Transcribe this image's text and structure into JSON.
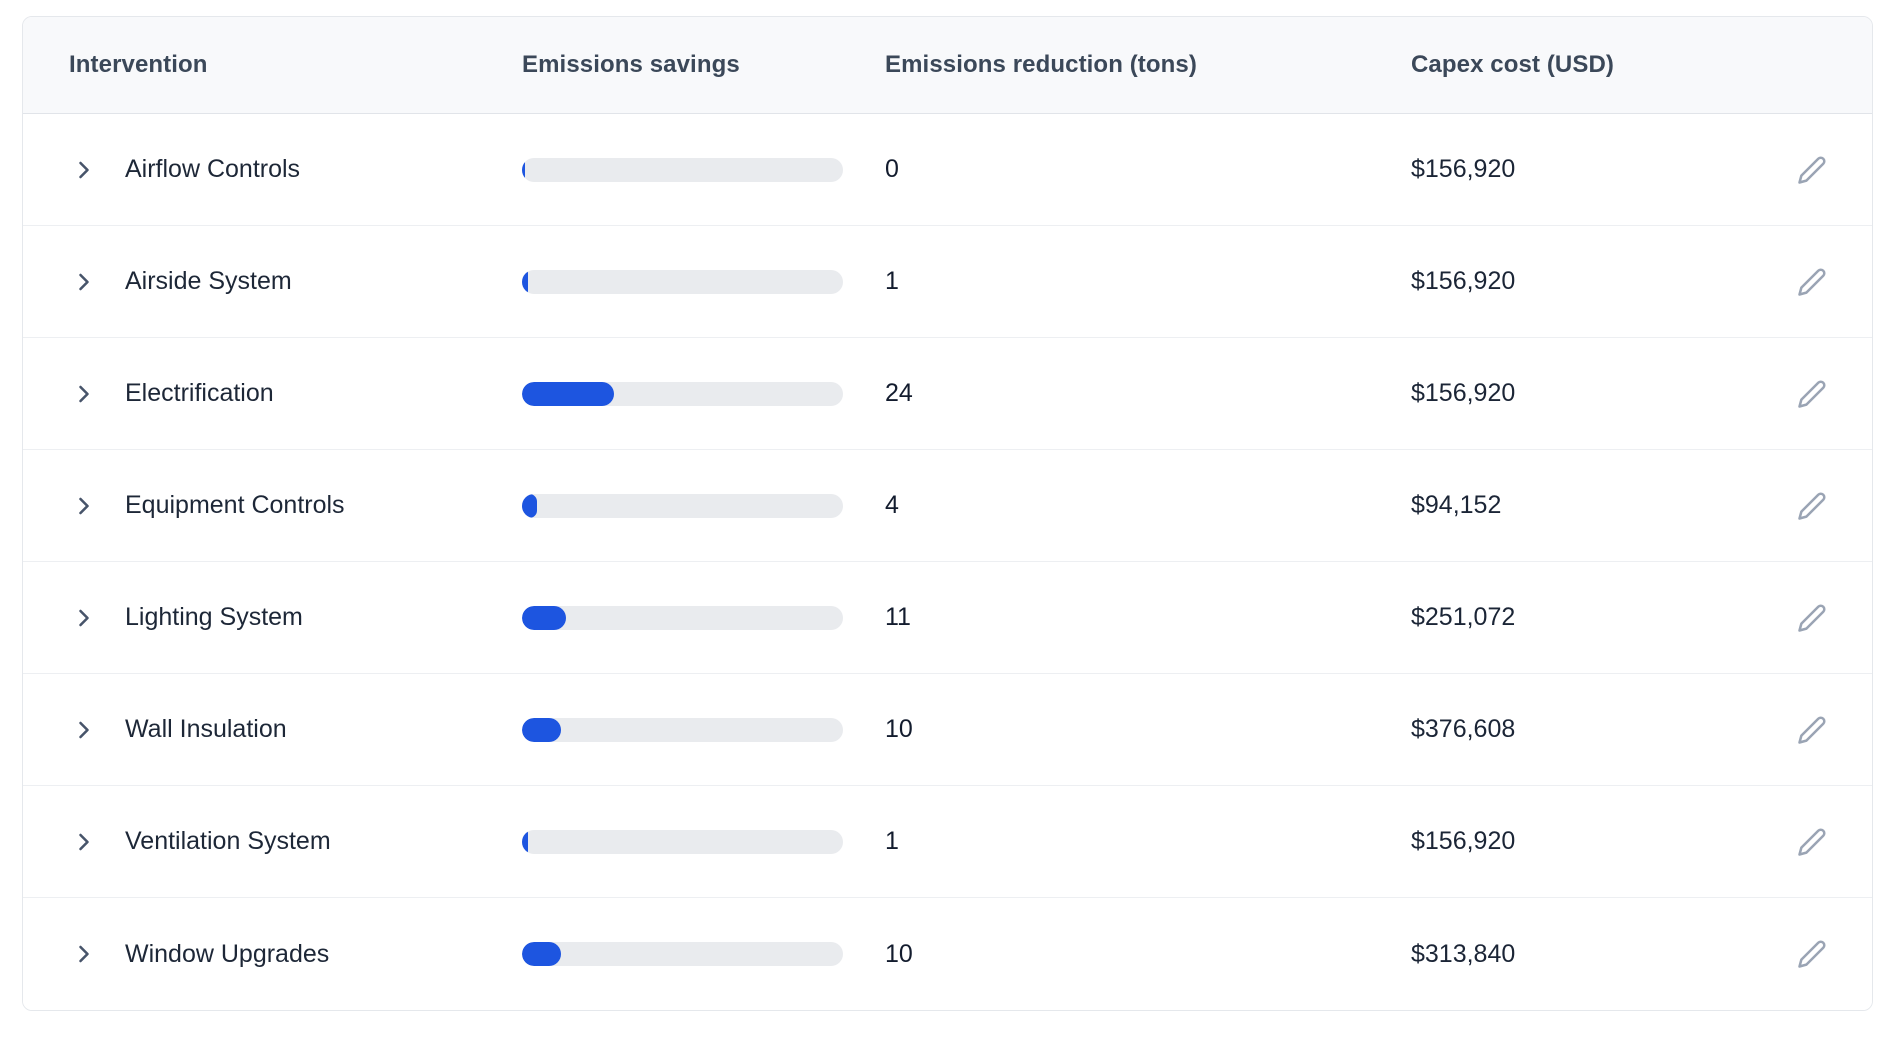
{
  "table": {
    "columns": [
      {
        "label": "Intervention"
      },
      {
        "label": "Emissions savings"
      },
      {
        "label": "Emissions reduction (tons)"
      },
      {
        "label": "Capex cost (USD)"
      }
    ],
    "rows": [
      {
        "name": "Airflow Controls",
        "savings_bar_pct": 1.0,
        "reduction_tons": "0",
        "capex": "$156,920"
      },
      {
        "name": "Airside System",
        "savings_bar_pct": 1.8,
        "reduction_tons": "1",
        "capex": "$156,920"
      },
      {
        "name": "Electrification",
        "savings_bar_pct": 28.7,
        "reduction_tons": "24",
        "capex": "$156,920"
      },
      {
        "name": "Equipment Controls",
        "savings_bar_pct": 4.7,
        "reduction_tons": "4",
        "capex": "$94,152"
      },
      {
        "name": "Lighting System",
        "savings_bar_pct": 13.7,
        "reduction_tons": "11",
        "capex": "$251,072"
      },
      {
        "name": "Wall Insulation",
        "savings_bar_pct": 12.3,
        "reduction_tons": "10",
        "capex": "$376,608"
      },
      {
        "name": "Ventilation System",
        "savings_bar_pct": 1.8,
        "reduction_tons": "1",
        "capex": "$156,920"
      },
      {
        "name": "Window Upgrades",
        "savings_bar_pct": 12.0,
        "reduction_tons": "10",
        "capex": "$313,840"
      }
    ],
    "icons": {
      "row_expander": "chevron-right-icon",
      "row_action": "pencil-edit-icon"
    },
    "colors": {
      "bar_fill": "#1d55e0",
      "bar_track": "#e9ebee",
      "header_bg": "#f8f9fb",
      "header_text": "#3b4859",
      "row_text": "#1d2737",
      "value_text": "#131c2e",
      "edit_icon": "#9aa4b4",
      "border": "#e5e8ec"
    }
  }
}
